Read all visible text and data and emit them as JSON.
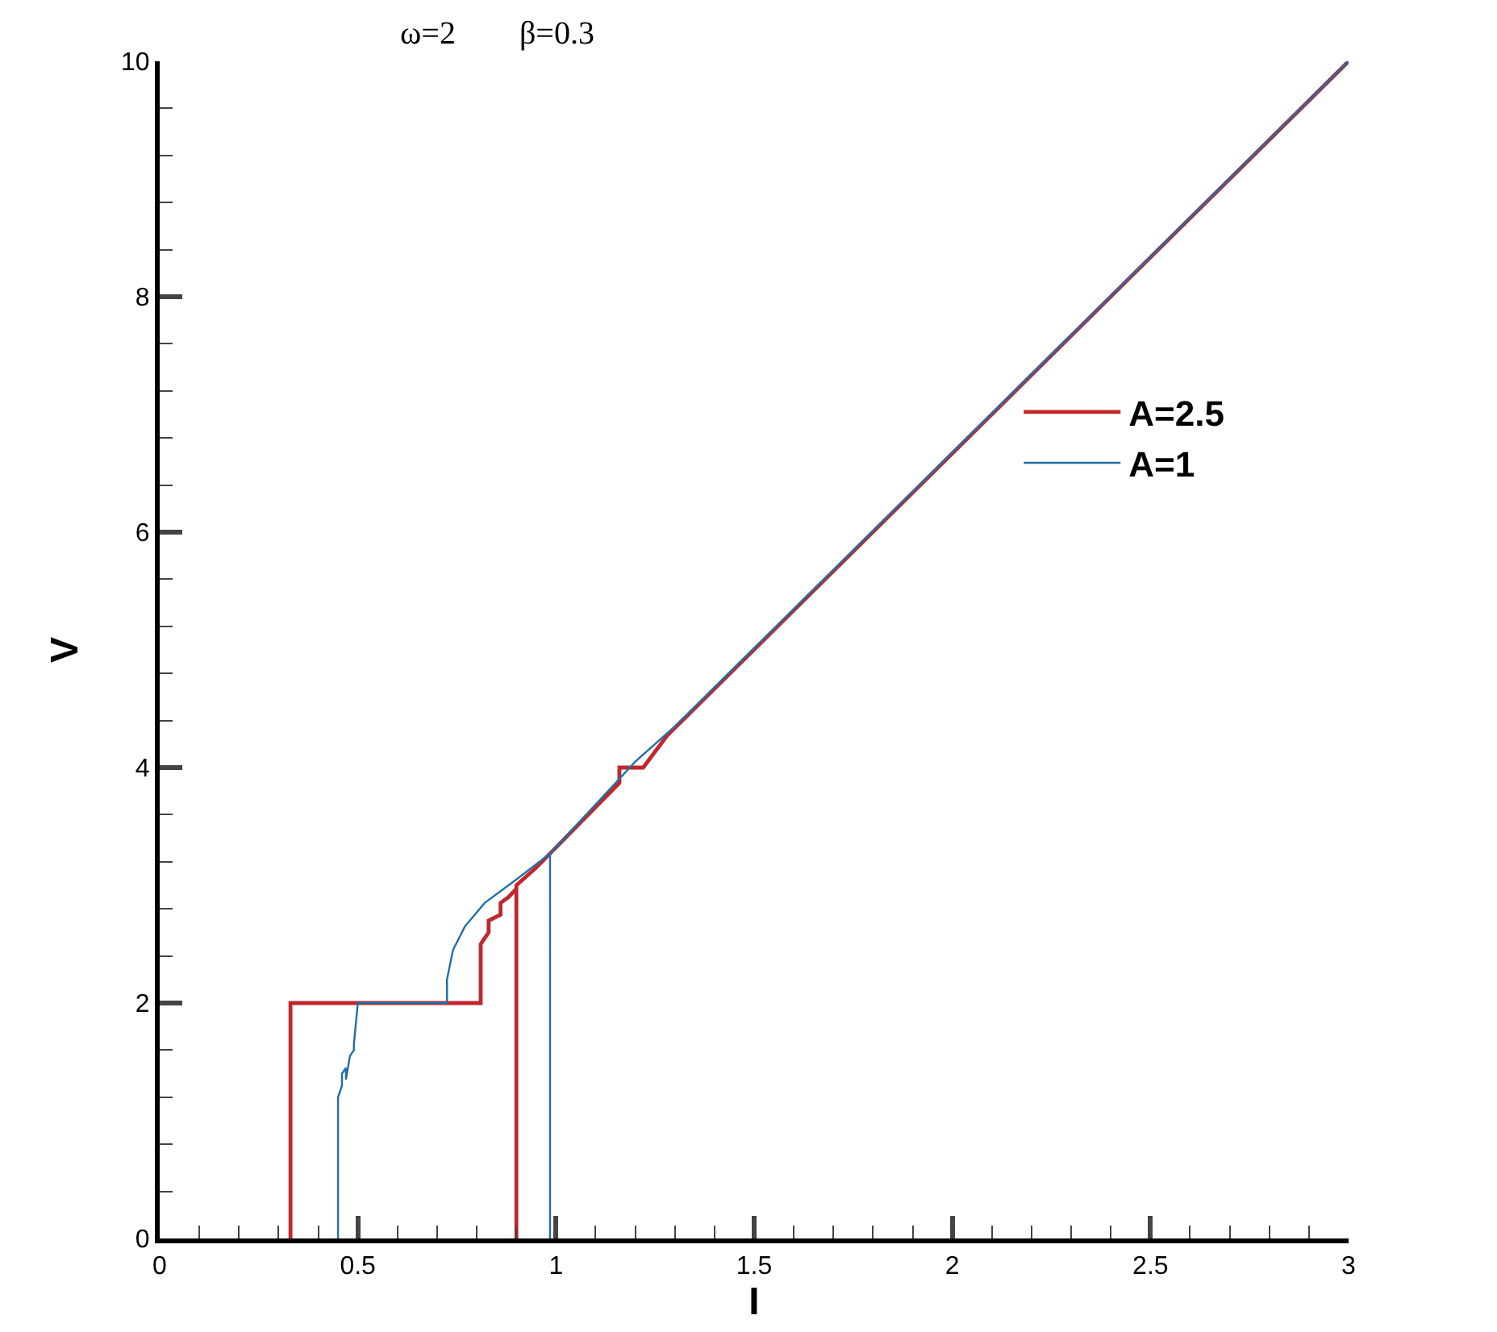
{
  "chart_data": {
    "type": "line",
    "xlabel": "I",
    "ylabel": "V",
    "annotations": [
      "ω=2",
      "β=0.3"
    ],
    "xlim": [
      0,
      3
    ],
    "xticks": [
      0,
      0.5,
      1,
      1.5,
      2,
      2.5,
      3
    ],
    "ylim": [
      0,
      10
    ],
    "yticks": [
      0,
      2,
      4,
      6,
      8,
      10
    ],
    "grid": false,
    "legend": "right",
    "marker": "none",
    "line_style": "solid",
    "series": [
      {
        "name": "A=2.5",
        "color": "#c0272d",
        "x": [
          0.33,
          0.33,
          0.81,
          0.81,
          0.83,
          0.83,
          0.86,
          0.86,
          0.88,
          0.9,
          0.9,
          0.9,
          0.95,
          1.16,
          1.16,
          1.22,
          1.28,
          3
        ],
        "values": [
          0,
          2,
          2,
          2.5,
          2.6,
          2.7,
          2.75,
          2.85,
          2.9,
          2.97,
          0,
          3.0,
          3.15,
          3.87,
          4.0,
          4.0,
          4.27,
          10
        ]
      },
      {
        "name": "A=1",
        "color": "#1f6fa8",
        "x": [
          0.45,
          0.45,
          0.46,
          0.46,
          0.47,
          0.47,
          0.48,
          0.49,
          0.49,
          0.5,
          0.725,
          0.725,
          0.74,
          0.77,
          0.82,
          0.9,
          0.985,
          0.985,
          0.985,
          1.2,
          1.3,
          3
        ],
        "values": [
          0,
          1.2,
          1.3,
          1.4,
          1.45,
          1.35,
          1.55,
          1.6,
          1.65,
          2,
          2,
          2.2,
          2.45,
          2.65,
          2.85,
          3.05,
          3.27,
          0,
          3.27,
          4.05,
          4.35,
          10
        ]
      }
    ]
  }
}
